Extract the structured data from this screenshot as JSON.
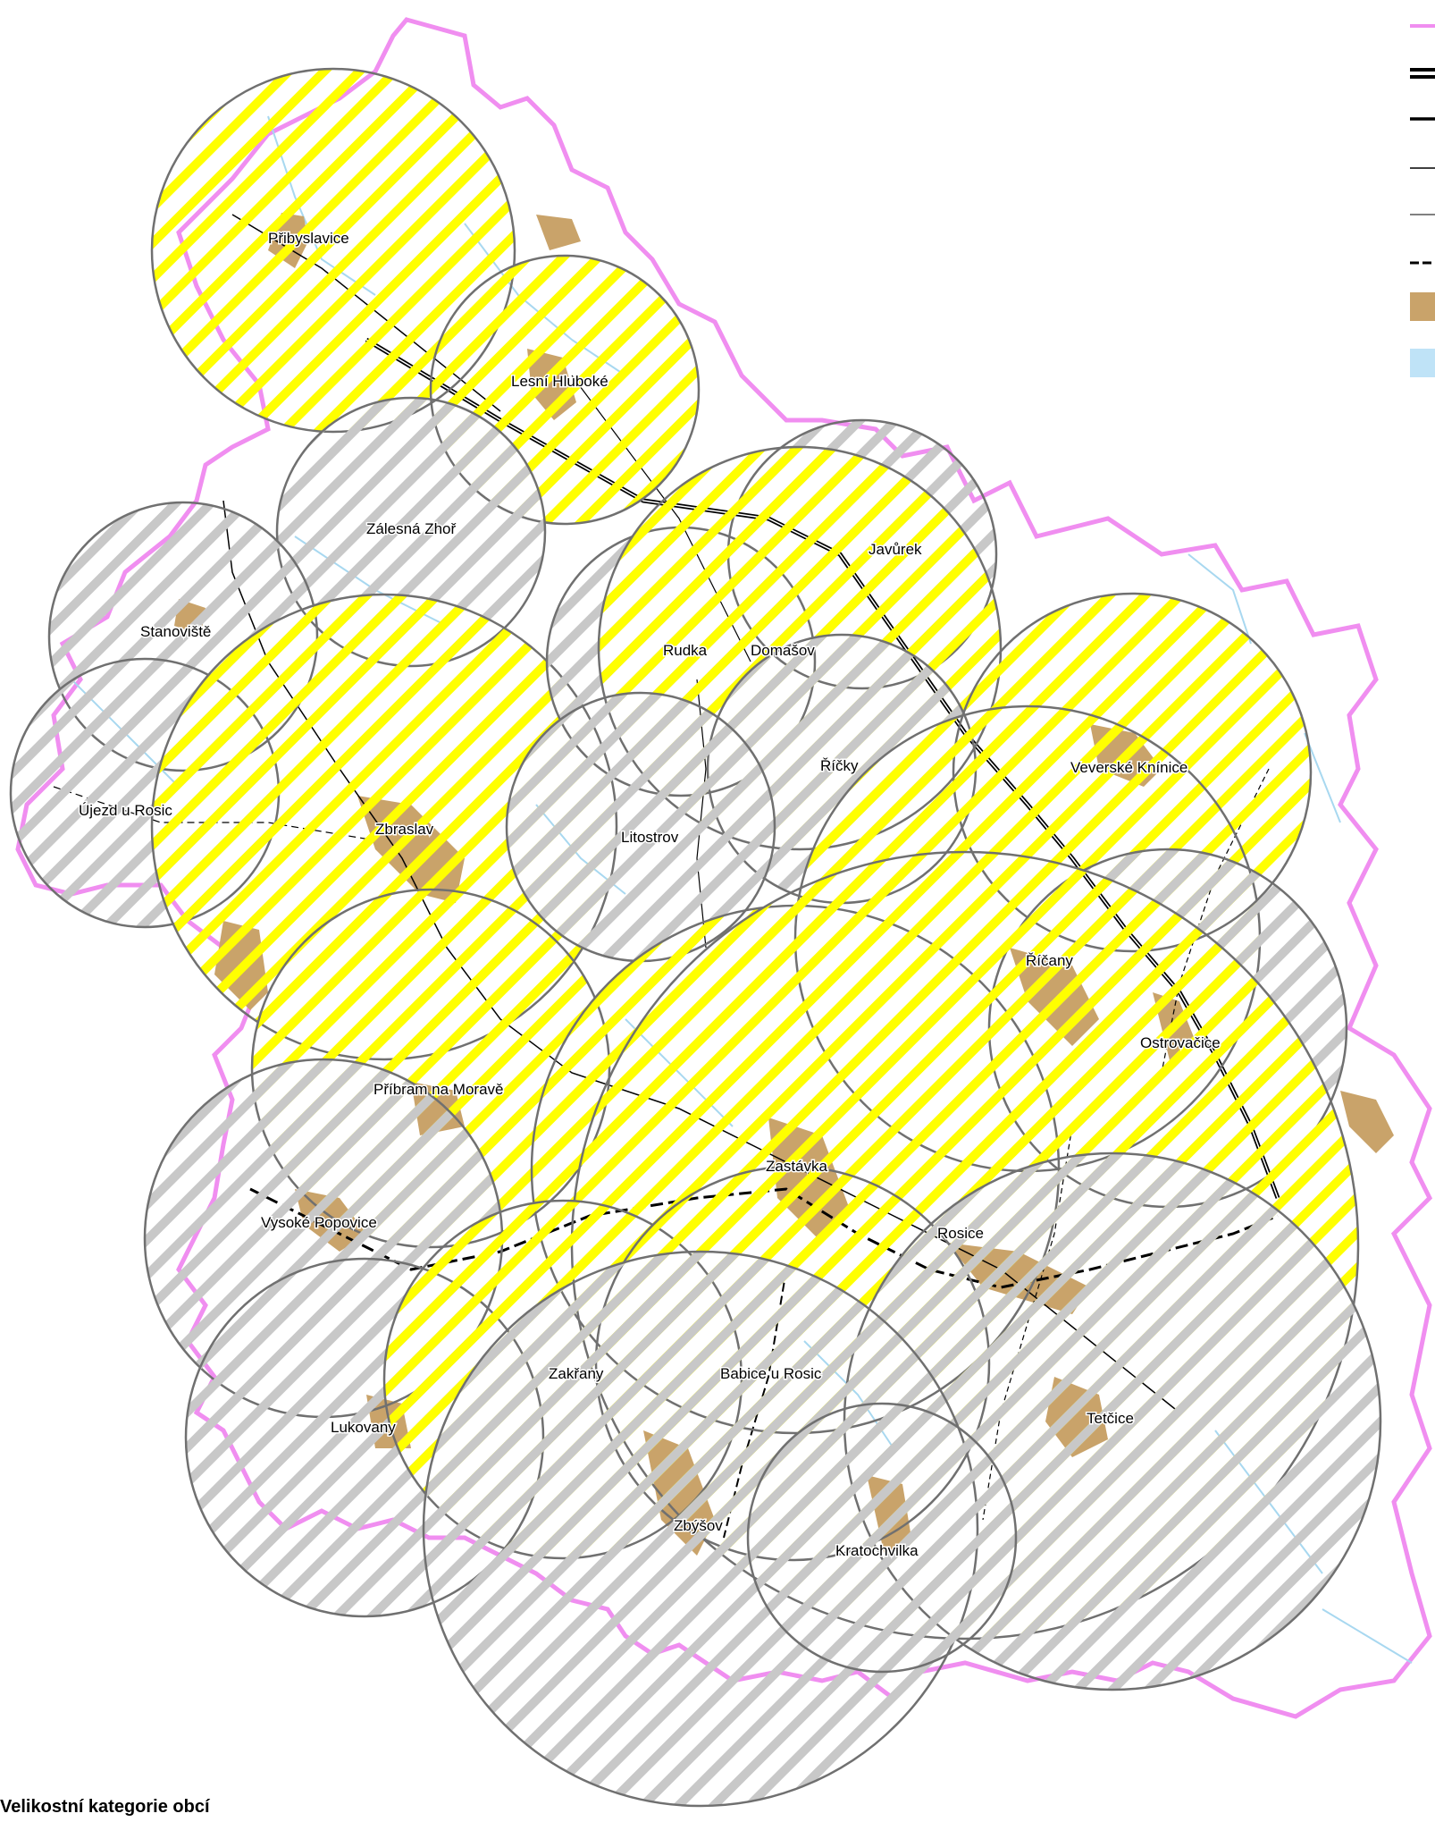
{
  "map": {
    "legend_title": "Velikostní kategorie obcí",
    "colors": {
      "boundary": "#f08ef0",
      "settlement": "#c9a36a",
      "water": "#a8d8f0",
      "highway": "#000000",
      "hatch_yellow": "#ffff00",
      "hatch_gray": "#c8c8c8",
      "circle_outline": "#707070"
    },
    "places": [
      {
        "name": "Přibyslavice",
        "zone": "yellow"
      },
      {
        "name": "Lesní Hluboké",
        "zone": "yellow"
      },
      {
        "name": "Zálesná Zhoř",
        "zone": "gray"
      },
      {
        "name": "Stanoviště",
        "zone": "gray"
      },
      {
        "name": "Javůrek",
        "zone": "gray"
      },
      {
        "name": "Rudka",
        "zone": "gray"
      },
      {
        "name": "Domašov",
        "zone": "yellow"
      },
      {
        "name": "Říčky",
        "zone": "gray"
      },
      {
        "name": "Veverské Knínice",
        "zone": "yellow"
      },
      {
        "name": "Újezd u Rosic",
        "zone": "gray"
      },
      {
        "name": "Zbraslav",
        "zone": "yellow"
      },
      {
        "name": "Litostrov",
        "zone": "gray"
      },
      {
        "name": "Říčany",
        "zone": "yellow"
      },
      {
        "name": "Ostrovačice",
        "zone": "gray"
      },
      {
        "name": "Příbram na Moravě",
        "zone": "yellow"
      },
      {
        "name": "Zastávka",
        "zone": "yellow"
      },
      {
        "name": "Vysoké Popovice",
        "zone": "gray"
      },
      {
        "name": "Rosice",
        "zone": "yellow"
      },
      {
        "name": "Zakřany",
        "zone": "yellow"
      },
      {
        "name": "Babice u Rosic",
        "zone": "yellow"
      },
      {
        "name": "Tetčice",
        "zone": "gray"
      },
      {
        "name": "Lukovany",
        "zone": "gray"
      },
      {
        "name": "Zbýšov",
        "zone": "gray"
      },
      {
        "name": "Kratochvilka",
        "zone": "gray"
      }
    ],
    "legend_items": [
      {
        "symbol": "boundary"
      },
      {
        "symbol": "highway"
      },
      {
        "symbol": "road-major"
      },
      {
        "symbol": "road-minor"
      },
      {
        "symbol": "road-local"
      },
      {
        "symbol": "railway"
      },
      {
        "symbol": "settlement"
      },
      {
        "symbol": "water"
      }
    ]
  }
}
